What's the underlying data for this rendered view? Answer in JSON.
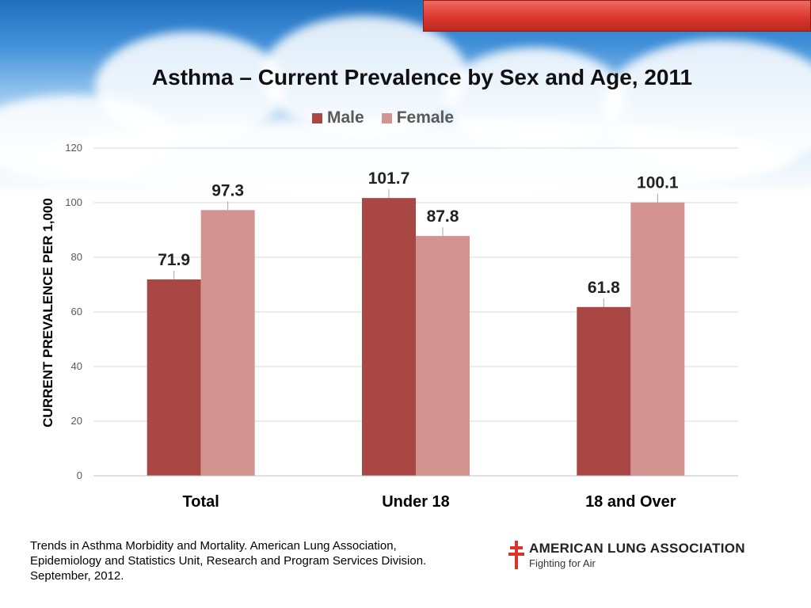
{
  "colors": {
    "male": "#a84744",
    "female": "#d39391",
    "accent": "#d9342b"
  },
  "chart_data": {
    "type": "bar",
    "title": "Asthma – Current Prevalence by Sex and Age, 2011",
    "xlabel": "",
    "ylabel": "CURRENT PREVALENCE PER 1,000",
    "categories": [
      "Total",
      "Under 18",
      "18 and Over"
    ],
    "series": [
      {
        "name": "Male",
        "values": [
          71.9,
          101.7,
          61.8
        ]
      },
      {
        "name": "Female",
        "values": [
          97.3,
          87.8,
          100.1
        ]
      }
    ],
    "ylim": [
      0,
      120
    ],
    "yticks": [
      0,
      20,
      40,
      60,
      80,
      100,
      120
    ],
    "grid": true,
    "legend_position": "top"
  },
  "source": {
    "line1": "Trends in Asthma Morbidity and Mortality. American Lung Association,",
    "line2": "Epidemiology and Statistics Unit, Research and Program Services Division.",
    "line3": "September, 2012."
  },
  "logo": {
    "name": "AMERICAN LUNG ASSOCIATION",
    "tagline": "Fighting for Air",
    "icon": "double-cross-icon"
  }
}
